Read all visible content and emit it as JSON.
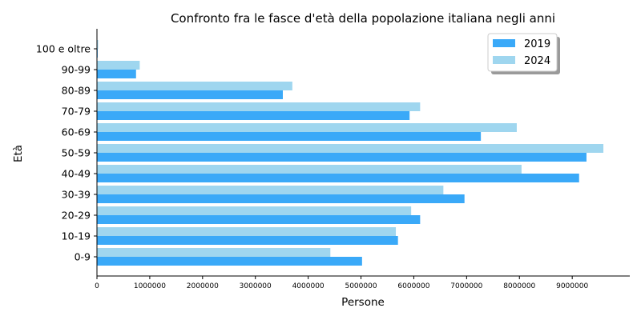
{
  "chart_data": {
    "type": "bar",
    "orientation": "horizontal",
    "title": "Confronto fra le fasce d'età della popolazione italiana negli anni",
    "xlabel": "Persone",
    "ylabel": "Età",
    "categories": [
      "0-9",
      "10-19",
      "20-29",
      "30-39",
      "40-49",
      "50-59",
      "60-69",
      "70-79",
      "80-89",
      "90-99",
      "100 e oltre"
    ],
    "series": [
      {
        "name": "2019",
        "color": "#3aa9f8",
        "values": [
          5020000,
          5700000,
          6120000,
          6960000,
          9130000,
          9270000,
          7270000,
          5920000,
          3520000,
          740000,
          14000
        ]
      },
      {
        "name": "2024",
        "color": "#9fd6ef",
        "values": [
          4420000,
          5660000,
          5950000,
          6560000,
          8040000,
          9590000,
          7950000,
          6120000,
          3700000,
          810000,
          22000
        ]
      }
    ],
    "xlim": [
      0,
      10090000
    ],
    "xticks": [
      0,
      1000000,
      2000000,
      3000000,
      4000000,
      5000000,
      6000000,
      7000000,
      8000000,
      9000000
    ],
    "xtick_labels": [
      "0",
      "1000000",
      "2000000",
      "3000000",
      "4000000",
      "5000000",
      "6000000",
      "7000000",
      "8000000",
      "9000000"
    ],
    "legend_position": "top-right",
    "grid": false
  }
}
